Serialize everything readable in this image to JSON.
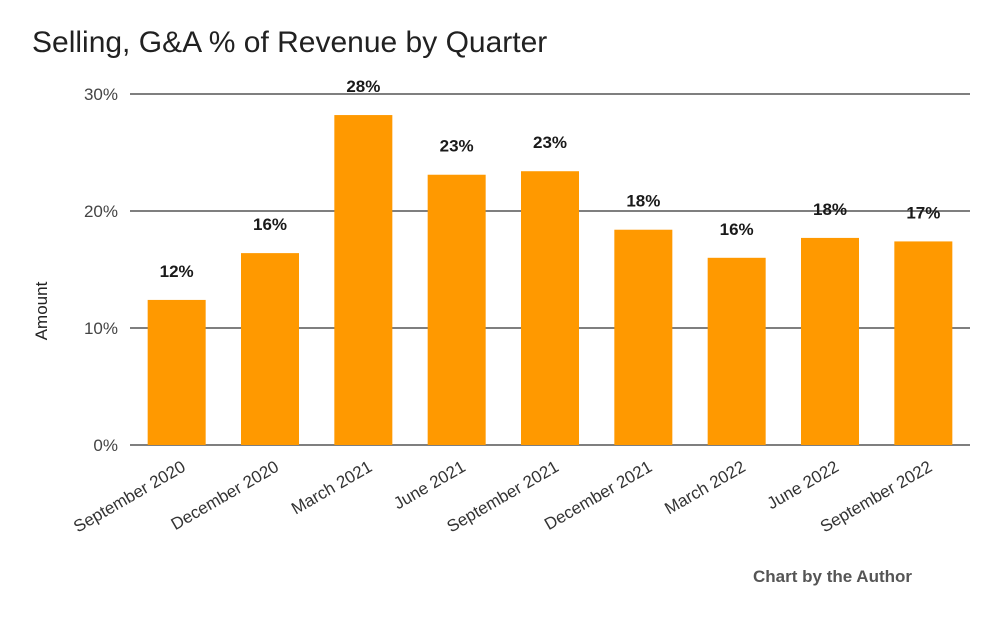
{
  "chart_data": {
    "type": "bar",
    "title": "Selling, G&A % of Revenue by Quarter",
    "xlabel": "",
    "ylabel": "Amount",
    "ylim": [
      0,
      30
    ],
    "yticks": [
      "0%",
      "10%",
      "20%",
      "30%"
    ],
    "categories": [
      "September 2020",
      "December 2020",
      "March 2021",
      "June 2021",
      "September 2021",
      "December 2021",
      "March 2022",
      "June 2022",
      "September 2022"
    ],
    "values": [
      12.4,
      16.4,
      28.2,
      23.1,
      23.4,
      18.4,
      16.0,
      17.7,
      17.4
    ],
    "data_labels": [
      "12%",
      "16%",
      "28%",
      "23%",
      "23%",
      "18%",
      "16%",
      "18%",
      "17%"
    ],
    "grid": true,
    "legend": "none",
    "bar_color": "#ff9900",
    "credit": "Chart by the Author"
  }
}
